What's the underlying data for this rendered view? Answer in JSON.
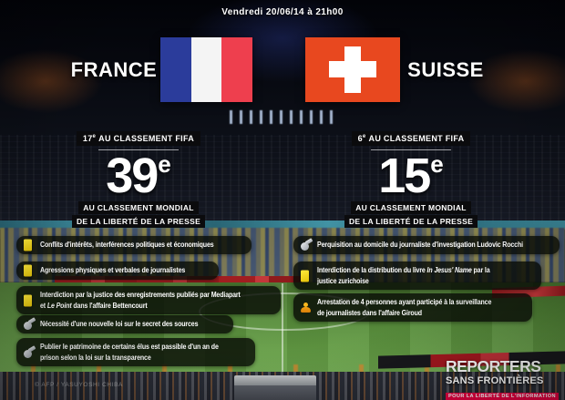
{
  "meta": {
    "datetime": "Vendredi 20/06/14 à 21h00",
    "photo_credit": "© AFP / YASUYOSHI CHIBA"
  },
  "teams": {
    "france": {
      "name": "FRANCE",
      "flag": "flag-france"
    },
    "suisse": {
      "name": "SUISSE",
      "flag": "flag-switzerland"
    }
  },
  "rankings": {
    "france": {
      "fifa_rank": "17",
      "fifa_rank_suffix": "e",
      "fifa_label": "AU CLASSEMENT FIFA",
      "press_rank": "39",
      "press_rank_suffix": "e",
      "press_label_line1": "AU CLASSEMENT MONDIAL",
      "press_label_line2": "DE LA LIBERTÉ DE LA PRESSE"
    },
    "suisse": {
      "fifa_rank": "6",
      "fifa_rank_suffix": "e",
      "fifa_label": "AU CLASSEMENT FIFA",
      "press_rank": "15",
      "press_rank_suffix": "e",
      "press_label_line1": "AU CLASSEMENT MONDIAL",
      "press_label_line2": "DE LA LIBERTÉ DE LA PRESSE"
    }
  },
  "issues": {
    "france": [
      {
        "icon": "yellow-card",
        "segments": [
          {
            "t": "Conflits d'intérêts, interférences politiques et économiques"
          }
        ]
      },
      {
        "icon": "yellow-card",
        "segments": [
          {
            "t": "Agressions physiques et verbales de journalistes"
          }
        ]
      },
      {
        "icon": "yellow-card",
        "segments": [
          {
            "t": "Interdiction par la justice des enregistrements publiés par Mediapart et "
          },
          {
            "t": "Le Point",
            "i": true
          },
          {
            "t": " dans l'affaire Bettencourt"
          }
        ]
      },
      {
        "icon": "whistle",
        "segments": [
          {
            "t": "Nécessité d'une nouvelle loi sur le secret des sources"
          }
        ]
      },
      {
        "icon": "whistle",
        "segments": [
          {
            "t": "Publier le patrimoine de certains élus est passible d'un an de prison selon la loi sur la transparence"
          }
        ]
      }
    ],
    "suisse": [
      {
        "icon": "whistle",
        "segments": [
          {
            "t": "Perquisition au domicile du journaliste d'investigation Ludovic Rocchi"
          }
        ]
      },
      {
        "icon": "yellow-card",
        "segments": [
          {
            "t": "Interdiction de la distribution du livre "
          },
          {
            "t": "In Jesus' Name",
            "i": true
          },
          {
            "t": " par la justice zurichoise"
          }
        ]
      },
      {
        "icon": "person",
        "segments": [
          {
            "t": "Arrestation de 4 personnes ayant participé à la surveillance de journalistes dans l'affaire Giroud"
          }
        ]
      }
    ]
  },
  "logo": {
    "line1": "REPORTERS",
    "line2": "SANS FRONTIÈRES",
    "tagline": "POUR LA LIBERTÉ DE L'INFORMATION"
  },
  "colors": {
    "france_flag_blue": "#2b3c9b",
    "france_flag_red": "#ee3f4e",
    "suisse_flag_red": "#e8481f",
    "rsf_red": "#e50040",
    "yellow_card": "#f3d90b",
    "pitch_green": "#558a39"
  }
}
